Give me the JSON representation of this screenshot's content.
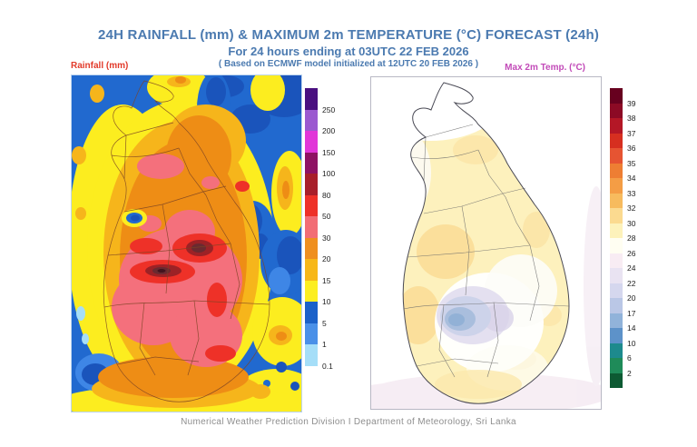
{
  "header": {
    "title": "24H RAINFALL (mm) & MAXIMUM 2m TEMPERATURE (°C) FORECAST (24h)",
    "subtitle": "For 24 hours ending at 03UTC 22 FEB 2026",
    "model_note": "( Based on ECMWF model initialized at 12UTC 20 FEB 2026 )",
    "title_color": "#4b7ab0"
  },
  "rainfall_map": {
    "label": "Rainfall (mm)",
    "label_color": "#e23a2a",
    "legend": [
      {
        "color": "#4a1080",
        "label": "250"
      },
      {
        "color": "#9b59d0",
        "label": "200"
      },
      {
        "color": "#e136d8",
        "label": "150"
      },
      {
        "color": "#8e1263",
        "label": "100"
      },
      {
        "color": "#a81f2a",
        "label": "80"
      },
      {
        "color": "#ee3128",
        "label": "50"
      },
      {
        "color": "#f26d75",
        "label": "30"
      },
      {
        "color": "#ef8f1f",
        "label": "20"
      },
      {
        "color": "#f7b718",
        "label": "15"
      },
      {
        "color": "#fcee21",
        "label": "10"
      },
      {
        "color": "#1b61c9",
        "label": "5"
      },
      {
        "color": "#4a90e8",
        "label": "1"
      },
      {
        "color": "#a5def8",
        "label": "0.1"
      }
    ]
  },
  "temperature_map": {
    "label": "Max 2m Temp. (°C)",
    "label_color": "#c24ab8",
    "legend": [
      {
        "color": "#67001f",
        "label": "39"
      },
      {
        "color": "#8c0a25",
        "label": "38"
      },
      {
        "color": "#b41726",
        "label": "37"
      },
      {
        "color": "#d62f20",
        "label": "36"
      },
      {
        "color": "#e65432",
        "label": "35"
      },
      {
        "color": "#ee7e33",
        "label": "34"
      },
      {
        "color": "#f49d45",
        "label": "33"
      },
      {
        "color": "#f7bb5e",
        "label": "32"
      },
      {
        "color": "#fbda90",
        "label": "30"
      },
      {
        "color": "#fdf2bb",
        "label": "28"
      },
      {
        "color": "#fffef2",
        "label": "26"
      },
      {
        "color": "#f8ecf3",
        "label": "24"
      },
      {
        "color": "#e9e3f2",
        "label": "22"
      },
      {
        "color": "#d5d7ee",
        "label": "20"
      },
      {
        "color": "#bac7e6",
        "label": "17"
      },
      {
        "color": "#91b3da",
        "label": "14"
      },
      {
        "color": "#5d92c9",
        "label": "10"
      },
      {
        "color": "#1d8a8d",
        "label": "6"
      },
      {
        "color": "#1f8b59",
        "label": "2"
      },
      {
        "color": "#0d5a33",
        "label": null
      }
    ]
  },
  "footer": {
    "credit": "Numerical Weather Prediction Division I Department of Meteorology, Sri Lanka"
  }
}
